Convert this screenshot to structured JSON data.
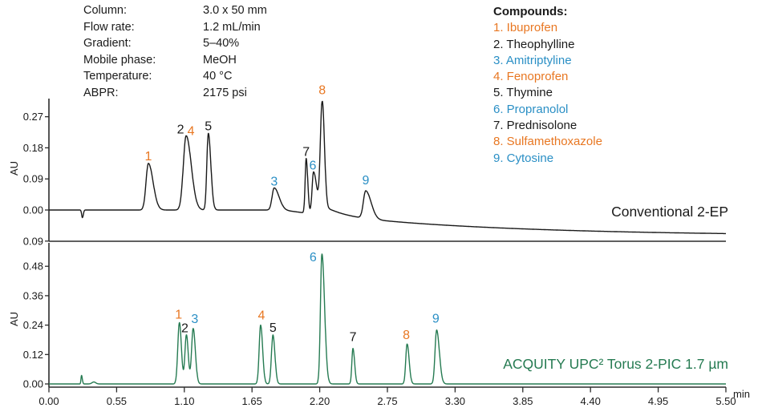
{
  "colors": {
    "orange": "#E87722",
    "blue": "#2A8FC5",
    "green": "#267B52",
    "black": "#1A1A1A",
    "axis": "#2B2B2B",
    "text": "#1A1A1A"
  },
  "header_params": [
    {
      "label": "Column:",
      "value": "3.0 x 50 mm"
    },
    {
      "label": "Flow rate:",
      "value": "1.2 mL/min"
    },
    {
      "label": "Gradient:",
      "value": "5–40%"
    },
    {
      "label": "Mobile phase:",
      "value": "MeOH"
    },
    {
      "label": "Temperature:",
      "value": "40 °C"
    },
    {
      "label": "ABPR:",
      "value": "2175 psi"
    }
  ],
  "compounds": {
    "title": "Compounds:",
    "items": [
      {
        "index": "1.",
        "name": "Ibuprofen",
        "color": "orange"
      },
      {
        "index": "2.",
        "name": "Theophylline",
        "color": "black"
      },
      {
        "index": "3.",
        "name": "Amitriptyline",
        "color": "blue"
      },
      {
        "index": "4.",
        "name": "Fenoprofen",
        "color": "orange"
      },
      {
        "index": "5.",
        "name": "Thymine",
        "color": "black"
      },
      {
        "index": "6.",
        "name": "Propranolol",
        "color": "blue"
      },
      {
        "index": "7.",
        "name": "Prednisolone",
        "color": "black"
      },
      {
        "index": "8.",
        "name": "Sulfamethoxazole",
        "color": "orange"
      },
      {
        "index": "9.",
        "name": "Cytosine",
        "color": "blue"
      }
    ]
  },
  "x_axis": {
    "unit": "min",
    "ticks": [
      {
        "t": 0.0,
        "label": "0.00"
      },
      {
        "t": 0.55,
        "label": "0.55"
      },
      {
        "t": 1.1,
        "label": "1.10"
      },
      {
        "t": 1.65,
        "label": "1.65"
      },
      {
        "t": 2.2,
        "label": "2.20"
      },
      {
        "t": 2.75,
        "label": "2.75"
      },
      {
        "t": 3.3,
        "label": "3.30"
      },
      {
        "t": 3.85,
        "label": "3.85"
      },
      {
        "t": 4.4,
        "label": "4.40"
      },
      {
        "t": 4.95,
        "label": "4.95"
      },
      {
        "t": 5.5,
        "label": "5.50"
      }
    ]
  },
  "chart_data": [
    {
      "id": "conventional-2ep",
      "type": "line",
      "title": "Conventional 2-EP",
      "title_color": "black",
      "ylabel": "AU",
      "xlabel": "min",
      "xlim": [
        0,
        5.5
      ],
      "ylim": [
        -0.09,
        0.315
      ],
      "grid": false,
      "trace_color": "black",
      "y_ticks": [
        {
          "v": 0.27,
          "label": "0.27"
        },
        {
          "v": 0.18,
          "label": "0.18"
        },
        {
          "v": 0.09,
          "label": "0.09"
        },
        {
          "v": 0.0,
          "label": "0.00"
        },
        {
          "v": -0.09,
          "label": "0.09"
        }
      ],
      "baseline_drift": {
        "start": 1.9,
        "amp": -0.075,
        "tau": 1.5
      },
      "peaks": [
        {
          "t": 0.272,
          "h": -0.022,
          "w": 0.006,
          "tf": 1.2
        },
        {
          "t": 0.808,
          "h": 0.135,
          "w": 0.019,
          "tf": 2.0,
          "compound": "Ibuprofen",
          "labels": [
            {
              "text": "1",
              "color": "orange",
              "dx": 0,
              "dy": -4
            }
          ]
        },
        {
          "t": 1.115,
          "h": 0.215,
          "w": 0.023,
          "tf": 1.8,
          "compound": "Theophylline / Fenoprofen",
          "labels": [
            {
              "text": "2",
              "color": "black",
              "dx": -7,
              "dy": -3
            },
            {
              "text": "4",
              "color": "orange",
              "dx": 6,
              "dy": -1
            }
          ]
        },
        {
          "t": 1.295,
          "h": 0.222,
          "w": 0.012,
          "tf": 1.7,
          "compound": "Thymine",
          "labels": [
            {
              "text": "5",
              "color": "black",
              "dx": 0,
              "dy": -4
            }
          ]
        },
        {
          "t": 1.83,
          "h": 0.064,
          "w": 0.017,
          "tf": 2.3,
          "compound": "Amitriptyline",
          "labels": [
            {
              "text": "3",
              "color": "blue",
              "dx": 0,
              "dy": -3
            }
          ]
        },
        {
          "t": 2.09,
          "h": 0.158,
          "w": 0.0085,
          "tf": 1.5,
          "compound": "Prednisolone",
          "labels": [
            {
              "text": "7",
              "color": "black",
              "dx": 0,
              "dy": -3
            }
          ]
        },
        {
          "t": 2.15,
          "h": 0.122,
          "w": 0.012,
          "tf": 2.2,
          "compound": "Propranolol",
          "labels": [
            {
              "text": "6",
              "color": "blue",
              "dx": -1,
              "dy": -3
            }
          ]
        },
        {
          "t": 2.22,
          "h": 0.325,
          "w": 0.015,
          "tf": 1.2,
          "tail": {
            "amp": 0.03,
            "tau": 0.15
          },
          "compound": "Sulfamethoxazole",
          "labels": [
            {
              "text": "8",
              "color": "orange",
              "dx": 0,
              "dy": -9
            }
          ]
        },
        {
          "t": 2.574,
          "h": 0.08,
          "w": 0.019,
          "tf": 2.3,
          "compound": "Cytosine",
          "labels": [
            {
              "text": "9",
              "color": "blue",
              "dx": 0,
              "dy": -8
            }
          ]
        }
      ]
    },
    {
      "id": "acquity-upc2-torus",
      "type": "line",
      "title": "ACQUITY UPC² Torus 2-PIC 1.7 µm",
      "title_color": "green",
      "ylabel": "AU",
      "xlabel": "min",
      "xlim": [
        0,
        5.5
      ],
      "ylim": [
        0,
        0.55
      ],
      "grid": false,
      "trace_color": "green",
      "y_ticks": [
        {
          "v": 0.48,
          "label": "0.48"
        },
        {
          "v": 0.36,
          "label": "0.36"
        },
        {
          "v": 0.24,
          "label": "0.24"
        },
        {
          "v": 0.12,
          "label": "0.12"
        },
        {
          "v": 0.0,
          "label": "0.00"
        }
      ],
      "peaks": [
        {
          "t": 0.265,
          "h": 0.035,
          "w": 0.0045,
          "tf": 1.4
        },
        {
          "t": 0.365,
          "h": 0.008,
          "w": 0.015,
          "tf": 1.0
        },
        {
          "t": 1.06,
          "h": 0.25,
          "w": 0.013,
          "tf": 1.25,
          "compound": "Ibuprofen",
          "labels": [
            {
              "text": "1",
              "color": "orange",
              "dx": -1,
              "dy": -5
            }
          ]
        },
        {
          "t": 1.117,
          "h": 0.2,
          "w": 0.012,
          "tf": 1.25,
          "compound": "Theophylline",
          "labels": [
            {
              "text": "2",
              "color": "black",
              "dx": -2,
              "dy": -3
            }
          ]
        },
        {
          "t": 1.172,
          "h": 0.226,
          "w": 0.013,
          "tf": 1.35,
          "compound": "Amitriptyline",
          "labels": [
            {
              "text": "3",
              "color": "blue",
              "dx": 2,
              "dy": -7
            }
          ]
        },
        {
          "t": 1.72,
          "h": 0.24,
          "w": 0.012,
          "tf": 1.35,
          "compound": "Fenoprofen",
          "labels": [
            {
              "text": "4",
              "color": "orange",
              "dx": 1,
              "dy": -7
            }
          ]
        },
        {
          "t": 1.82,
          "h": 0.2,
          "w": 0.012,
          "tf": 1.35,
          "compound": "Thymine",
          "labels": [
            {
              "text": "5",
              "color": "black",
              "dx": 0,
              "dy": -4
            }
          ]
        },
        {
          "t": 2.218,
          "h": 0.53,
          "w": 0.012,
          "tf": 1.8,
          "compound": "Propranolol",
          "labels": [
            {
              "text": "6",
              "color": "blue",
              "dx": -11,
              "dy": 9
            }
          ]
        },
        {
          "t": 2.47,
          "h": 0.145,
          "w": 0.009,
          "tf": 1.5,
          "compound": "Prednisolone",
          "labels": [
            {
              "text": "7",
              "color": "black",
              "dx": 0,
              "dy": -9
            }
          ]
        },
        {
          "t": 2.91,
          "h": 0.163,
          "w": 0.011,
          "tf": 1.5,
          "compound": "Sulfamethoxazole",
          "labels": [
            {
              "text": "8",
              "color": "orange",
              "dx": -1,
              "dy": -6
            }
          ]
        },
        {
          "t": 3.15,
          "h": 0.22,
          "w": 0.013,
          "tf": 1.7,
          "compound": "Cytosine",
          "labels": [
            {
              "text": "9",
              "color": "blue",
              "dx": -1,
              "dy": -9
            }
          ]
        }
      ]
    }
  ]
}
